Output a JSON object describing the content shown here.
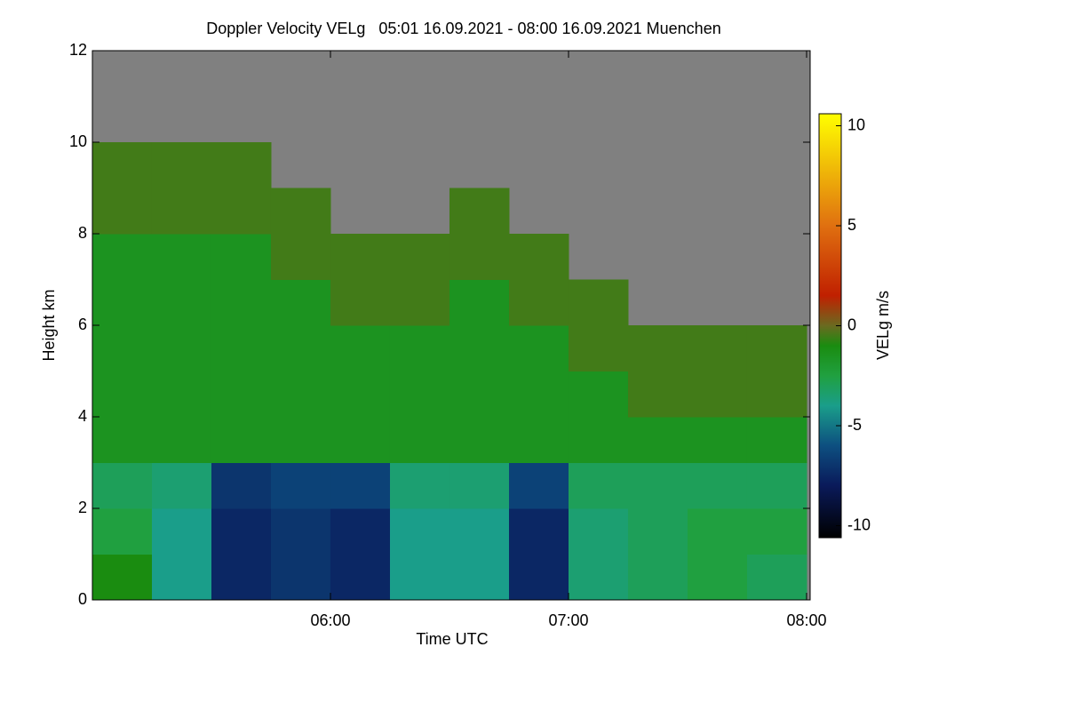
{
  "chart_data": {
    "type": "heatmap",
    "title": "Doppler Velocity VELg   05:01 16.09.2021 - 08:00 16.09.2021 Muenchen",
    "xlabel": "Time UTC",
    "ylabel": "Height km",
    "colorbar_label": "VELg m/s",
    "xlim": [
      5,
      8.015
    ],
    "ylim": [
      0,
      12
    ],
    "xticks": [
      {
        "value": 6,
        "label": "06:00"
      },
      {
        "value": 7,
        "label": "07:00"
      },
      {
        "value": 8,
        "label": "08:00"
      }
    ],
    "yticks": [
      0,
      2,
      4,
      6,
      8,
      10,
      12
    ],
    "x_edges": [
      5,
      5.25,
      5.5,
      5.75,
      6,
      6.25,
      6.5,
      6.75,
      7,
      7.25,
      7.5,
      7.75,
      8
    ],
    "y_edges": [
      0,
      1,
      2,
      3,
      4,
      5,
      6,
      7,
      8,
      9,
      10,
      11,
      12
    ],
    "z": [
      [
        -1,
        -4,
        -7.5,
        -7,
        -7.5,
        -4,
        -4,
        -7.5,
        -3.5,
        -3,
        -2.5,
        -3
      ],
      [
        -2.5,
        -4,
        -7.5,
        -7,
        -7.5,
        -4,
        -4,
        -7.5,
        -3.5,
        -3,
        -2.5,
        -2.5
      ],
      [
        -3,
        -3.5,
        -7,
        -6.5,
        -6.5,
        -3.5,
        -3.5,
        -6.5,
        -3,
        -3,
        -3,
        -3
      ],
      [
        -1.5,
        -1.5,
        -1.5,
        -1.5,
        -1.5,
        -1.5,
        -1.5,
        -1.5,
        -1.5,
        -1.5,
        -1.5,
        -1.5
      ],
      [
        -1.5,
        -1.5,
        -1.5,
        -1.5,
        -1.5,
        -1.5,
        -1.5,
        -1.5,
        -1.5,
        -0.5,
        -0.5,
        -0.5
      ],
      [
        -1.5,
        -1.5,
        -1.5,
        -1.5,
        -1.5,
        -1.5,
        -1.5,
        -1.5,
        -0.5,
        -0.5,
        -0.5,
        -0.5
      ],
      [
        -1.5,
        -1.5,
        -1.5,
        -1.5,
        -0.5,
        -0.5,
        -1.5,
        -0.5,
        -0.5,
        null,
        null,
        null
      ],
      [
        -1.5,
        -1.5,
        -1.5,
        -0.5,
        -0.5,
        -0.5,
        -0.5,
        -0.5,
        null,
        null,
        null,
        null
      ],
      [
        -0.5,
        -0.5,
        -0.5,
        -0.5,
        null,
        null,
        -0.5,
        null,
        null,
        null,
        null,
        null
      ],
      [
        -0.5,
        -0.5,
        -0.5,
        null,
        null,
        null,
        null,
        null,
        null,
        null,
        null,
        null
      ],
      [
        null,
        null,
        null,
        null,
        null,
        null,
        null,
        null,
        null,
        null,
        null,
        null
      ],
      [
        null,
        null,
        null,
        null,
        null,
        null,
        null,
        null,
        null,
        null,
        null,
        null
      ]
    ],
    "nodata_color": "#808080",
    "colorbar_lim": [
      -10.6,
      10.6
    ],
    "colorbar_ticks": [
      -10,
      -5,
      0,
      5,
      10
    ],
    "colorscale": [
      {
        "value": -10.6,
        "color": "#000000"
      },
      {
        "value": -8,
        "color": "#0a1a5a"
      },
      {
        "value": -6,
        "color": "#0d4f80"
      },
      {
        "value": -4,
        "color": "#1a9e8a"
      },
      {
        "value": -2.5,
        "color": "#20a040"
      },
      {
        "value": -1,
        "color": "#1a8c10"
      },
      {
        "value": 0,
        "color": "#6a6a20"
      },
      {
        "value": 1.5,
        "color": "#c02000"
      },
      {
        "value": 5,
        "color": "#e07010"
      },
      {
        "value": 10.6,
        "color": "#ffff00"
      }
    ]
  }
}
